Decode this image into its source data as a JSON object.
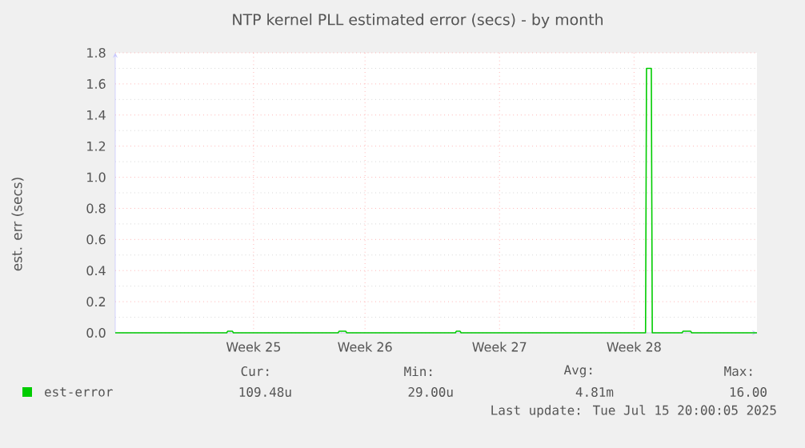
{
  "chart_data": {
    "type": "line",
    "title": "NTP kernel PLL estimated error (secs) - by month",
    "ylabel": "est. err (secs)",
    "xlim": [
      "2025-06-13T12:00",
      "2025-07-16T21:36"
    ],
    "xticks": [
      {
        "value": "2025-06-20T16:48",
        "label": "Week 25"
      },
      {
        "value": "2025-06-26T12:00",
        "label": "Week 26"
      },
      {
        "value": "2025-07-03T12:00",
        "label": "Week 27"
      },
      {
        "value": "2025-07-10T12:00",
        "label": "Week 28"
      }
    ],
    "ylim": [
      0,
      1.8
    ],
    "yticks": [
      {
        "value": 0,
        "label": "0.0"
      },
      {
        "value": 0.2,
        "label": "0.2"
      },
      {
        "value": 0.4,
        "label": "0.4"
      },
      {
        "value": 0.6,
        "label": "0.6"
      },
      {
        "value": 0.8,
        "label": "0.8"
      },
      {
        "value": 1.0,
        "label": "1.0"
      },
      {
        "value": 1.2,
        "label": "1.2"
      },
      {
        "value": 1.4,
        "label": "1.4"
      },
      {
        "value": 1.6,
        "label": "1.6"
      },
      {
        "value": 1.8,
        "label": "1.8"
      }
    ],
    "grid": true,
    "legend": "bottom left",
    "series": [
      {
        "name": "est-error",
        "color": "#00cc00",
        "x": [
          "2025-06-13T12:00",
          "2025-06-19T07:12",
          "2025-06-19T08:24",
          "2025-06-19T14:24",
          "2025-06-19T15:36",
          "2025-06-25T02:24",
          "2025-06-25T03:36",
          "2025-06-25T12:00",
          "2025-06-25T13:12",
          "2025-07-01T04:48",
          "2025-07-01T06:00",
          "2025-07-01T10:48",
          "2025-07-01T12:00",
          "2025-07-11T02:24",
          "2025-07-11T03:36",
          "2025-07-11T09:36",
          "2025-07-11T10:48",
          "2025-07-13T00:00",
          "2025-07-13T01:12",
          "2025-07-13T10:48",
          "2025-07-13T12:00",
          "2025-07-16T21:36"
        ],
        "values": [
          0,
          0,
          0.01,
          0.01,
          0,
          0,
          0.01,
          0.01,
          0,
          0,
          0.01,
          0.01,
          0,
          0,
          1.7,
          1.7,
          0,
          0,
          0.01,
          0.01,
          0,
          0
        ]
      }
    ],
    "annotations": [
      "Cur:",
      "109.48u",
      "Min:",
      "29.00u",
      "Avg:",
      "4.81m",
      "Max:",
      "16.00",
      "Last update: Tue Jul 15 20:00:05 2025"
    ]
  }
}
